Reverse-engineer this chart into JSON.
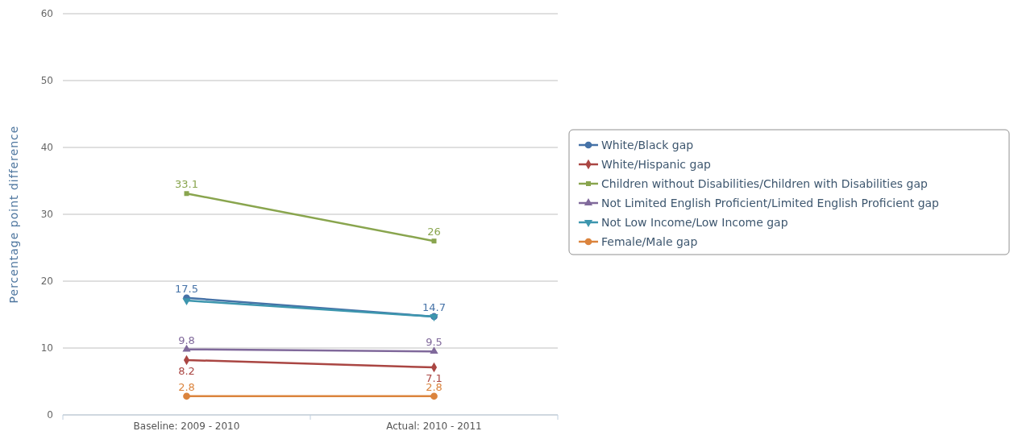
{
  "chart_data": {
    "type": "line",
    "ylabel": "Percentage point difference",
    "categories": [
      "Baseline: 2009 - 2010",
      "Actual: 2010 - 2011"
    ],
    "ylim": [
      0,
      60
    ],
    "yticks": [
      0,
      10,
      20,
      30,
      40,
      50,
      60
    ],
    "grid": "y",
    "legend": "right",
    "series": [
      {
        "name": "White/Black gap",
        "color": "#4572a7",
        "marker": "circle",
        "values": [
          17.5,
          14.7
        ],
        "value_labels": [
          "17.5",
          "14.7"
        ]
      },
      {
        "name": "White/Hispanic gap",
        "color": "#aa4643",
        "marker": "diamond",
        "values": [
          8.2,
          7.1
        ],
        "value_labels": [
          "8.2",
          "7.1"
        ]
      },
      {
        "name": "Children without Disabilities/Children with Disabilities gap",
        "color": "#89a54e",
        "marker": "square",
        "values": [
          33.1,
          26
        ],
        "value_labels": [
          "33.1",
          "26"
        ]
      },
      {
        "name": "Not Limited English Proficient/Limited English Proficient gap",
        "color": "#80699b",
        "marker": "triangle",
        "values": [
          9.8,
          9.5
        ],
        "value_labels": [
          "9.8",
          "9.5"
        ]
      },
      {
        "name": "Not Low Income/Low Income gap",
        "color": "#3d96ae",
        "marker": "triangle-down",
        "values": [
          17.1,
          14.7
        ],
        "value_labels": [
          null,
          null
        ]
      },
      {
        "name": "Female/Male gap",
        "color": "#db843d",
        "marker": "circle",
        "values": [
          2.8,
          2.8
        ],
        "value_labels": [
          "2.8",
          "2.8"
        ]
      }
    ]
  }
}
